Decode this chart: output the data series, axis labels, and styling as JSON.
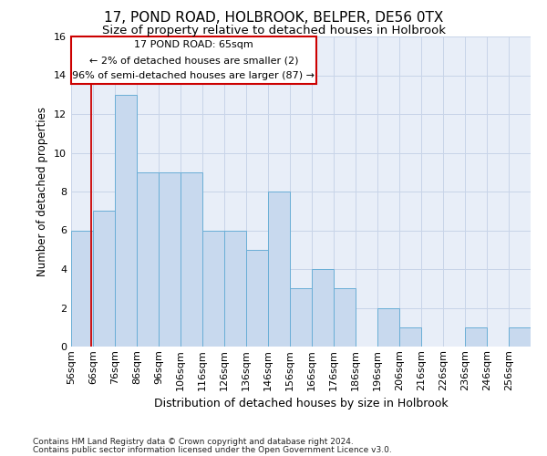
{
  "title": "17, POND ROAD, HOLBROOK, BELPER, DE56 0TX",
  "subtitle": "Size of property relative to detached houses in Holbrook",
  "xlabel": "Distribution of detached houses by size in Holbrook",
  "ylabel": "Number of detached properties",
  "footnote1": "Contains HM Land Registry data © Crown copyright and database right 2024.",
  "footnote2": "Contains public sector information licensed under the Open Government Licence v3.0.",
  "annotation_line1": "17 POND ROAD: 65sqm",
  "annotation_line2": "← 2% of detached houses are smaller (2)",
  "annotation_line3": "96% of semi-detached houses are larger (87) →",
  "bar_values": [
    6,
    7,
    13,
    9,
    9,
    9,
    6,
    6,
    5,
    8,
    3,
    4,
    3,
    0,
    2,
    1,
    0,
    0,
    1,
    0,
    1
  ],
  "bin_edges": [
    56,
    66,
    76,
    86,
    96,
    106,
    116,
    126,
    136,
    146,
    156,
    166,
    176,
    186,
    196,
    206,
    216,
    226,
    236,
    246,
    256,
    266
  ],
  "bin_labels": [
    "56sqm",
    "66sqm",
    "76sqm",
    "86sqm",
    "96sqm",
    "106sqm",
    "116sqm",
    "126sqm",
    "136sqm",
    "146sqm",
    "156sqm",
    "166sqm",
    "176sqm",
    "186sqm",
    "196sqm",
    "206sqm",
    "216sqm",
    "226sqm",
    "236sqm",
    "246sqm",
    "256sqm"
  ],
  "bar_color": "#c8d9ee",
  "bar_edge_color": "#6aaed6",
  "vline_x": 65,
  "ylim": [
    0,
    16
  ],
  "yticks": [
    0,
    2,
    4,
    6,
    8,
    10,
    12,
    14,
    16
  ],
  "grid_color": "#c8d4e8",
  "annotation_box_color": "#ffffff",
  "annotation_box_edge": "#cc0000",
  "vline_color": "#cc0000",
  "bg_color": "#e8eef8",
  "title_fontsize": 11,
  "subtitle_fontsize": 9.5,
  "xlabel_fontsize": 9,
  "ylabel_fontsize": 8.5,
  "tick_fontsize": 8,
  "annotation_fontsize": 8,
  "footnote_fontsize": 6.5
}
